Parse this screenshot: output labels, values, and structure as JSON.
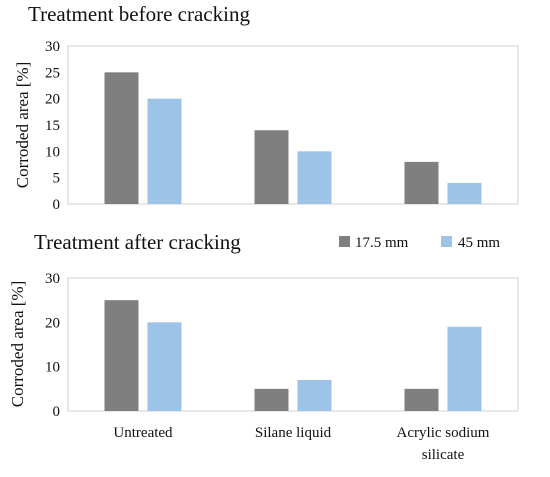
{
  "legend": {
    "entries": [
      {
        "name": "17.5 mm",
        "color": "#7f7f7f"
      },
      {
        "name": "45 mm",
        "color": "#9dc3e6"
      }
    ]
  },
  "chart_data": [
    {
      "type": "bar",
      "title": "Treatment before cracking",
      "ylabel": "Corroded area [%]",
      "xlabel": "",
      "categories": [
        "Untreated",
        "Silane liquid",
        "Acrylic sodium silicate"
      ],
      "ylim": [
        0,
        30
      ],
      "yticks": [
        0,
        5,
        10,
        15,
        20,
        25,
        30
      ],
      "grid": false,
      "series": [
        {
          "name": "17.5 mm",
          "color": "#7f7f7f",
          "values": [
            25,
            14,
            8
          ]
        },
        {
          "name": "45 mm",
          "color": "#9dc3e6",
          "values": [
            20,
            10,
            4
          ]
        }
      ]
    },
    {
      "type": "bar",
      "title": "Treatment after cracking",
      "ylabel": "Corroded area [%]",
      "xlabel": "",
      "categories": [
        "Untreated",
        "Silane liquid",
        "Acrylic sodium silicate"
      ],
      "category_labels": [
        [
          "Untreated"
        ],
        [
          "Silane liquid"
        ],
        [
          "Acrylic sodium",
          "silicate"
        ]
      ],
      "ylim": [
        0,
        30
      ],
      "yticks": [
        0,
        10,
        20,
        30
      ],
      "grid": false,
      "legend_position": "top-right",
      "series": [
        {
          "name": "17.5 mm",
          "color": "#7f7f7f",
          "values": [
            25,
            5,
            5
          ]
        },
        {
          "name": "45 mm",
          "color": "#9dc3e6",
          "values": [
            20,
            7,
            19
          ]
        }
      ]
    }
  ]
}
